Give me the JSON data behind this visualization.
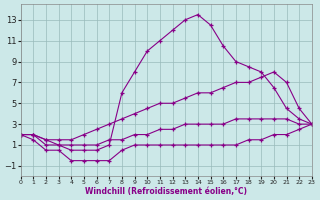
{
  "xlabel": "Windchill (Refroidissement éolien,°C)",
  "bg_color": "#cce8e8",
  "line_color": "#880088",
  "xlim": [
    0,
    23
  ],
  "ylim": [
    -2,
    14.5
  ],
  "xticks": [
    0,
    1,
    2,
    3,
    4,
    5,
    6,
    7,
    8,
    9,
    10,
    11,
    12,
    13,
    14,
    15,
    16,
    17,
    18,
    19,
    20,
    21,
    22,
    23
  ],
  "yticks": [
    -1,
    1,
    3,
    5,
    7,
    9,
    11,
    13
  ],
  "line_peak_x": [
    0,
    1,
    2,
    3,
    4,
    5,
    6,
    7,
    8,
    9,
    10,
    11,
    12,
    13,
    14,
    15,
    16,
    17,
    18,
    19,
    20,
    21,
    22,
    23
  ],
  "line_peak_y": [
    2,
    2,
    1.5,
    1,
    0.5,
    0.5,
    0.5,
    1,
    6,
    8,
    10,
    11,
    12,
    13,
    13.5,
    12.5,
    10.5,
    9,
    8.5,
    8,
    6.5,
    4.5,
    3.5,
    3
  ],
  "line_diag1_x": [
    0,
    1,
    2,
    3,
    4,
    5,
    6,
    7,
    8,
    9,
    10,
    11,
    12,
    13,
    14,
    15,
    16,
    17,
    18,
    19,
    20,
    21,
    22,
    23
  ],
  "line_diag1_y": [
    2,
    2,
    1.5,
    1.5,
    1.5,
    2,
    2.5,
    3,
    3.5,
    4,
    4.5,
    5,
    5,
    5.5,
    6,
    6,
    6.5,
    7,
    7,
    7.5,
    8,
    7,
    4.5,
    3
  ],
  "line_diag2_x": [
    0,
    1,
    2,
    3,
    4,
    5,
    6,
    7,
    8,
    9,
    10,
    11,
    12,
    13,
    14,
    15,
    16,
    17,
    18,
    19,
    20,
    21,
    22,
    23
  ],
  "line_diag2_y": [
    2,
    2,
    1,
    1,
    1,
    1,
    1,
    1.5,
    1.5,
    2,
    2,
    2.5,
    2.5,
    3,
    3,
    3,
    3,
    3.5,
    3.5,
    3.5,
    3.5,
    3.5,
    3,
    3
  ],
  "line_low_x": [
    0,
    1,
    2,
    3,
    4,
    5,
    6,
    7,
    8,
    9,
    10,
    11,
    12,
    13,
    14,
    15,
    16,
    17,
    18,
    19,
    20,
    21,
    22,
    23
  ],
  "line_low_y": [
    2,
    1.5,
    0.5,
    0.5,
    -0.5,
    -0.5,
    -0.5,
    -0.5,
    0.5,
    1,
    1,
    1,
    1,
    1,
    1,
    1,
    1,
    1,
    1.5,
    1.5,
    2,
    2,
    2.5,
    3
  ]
}
